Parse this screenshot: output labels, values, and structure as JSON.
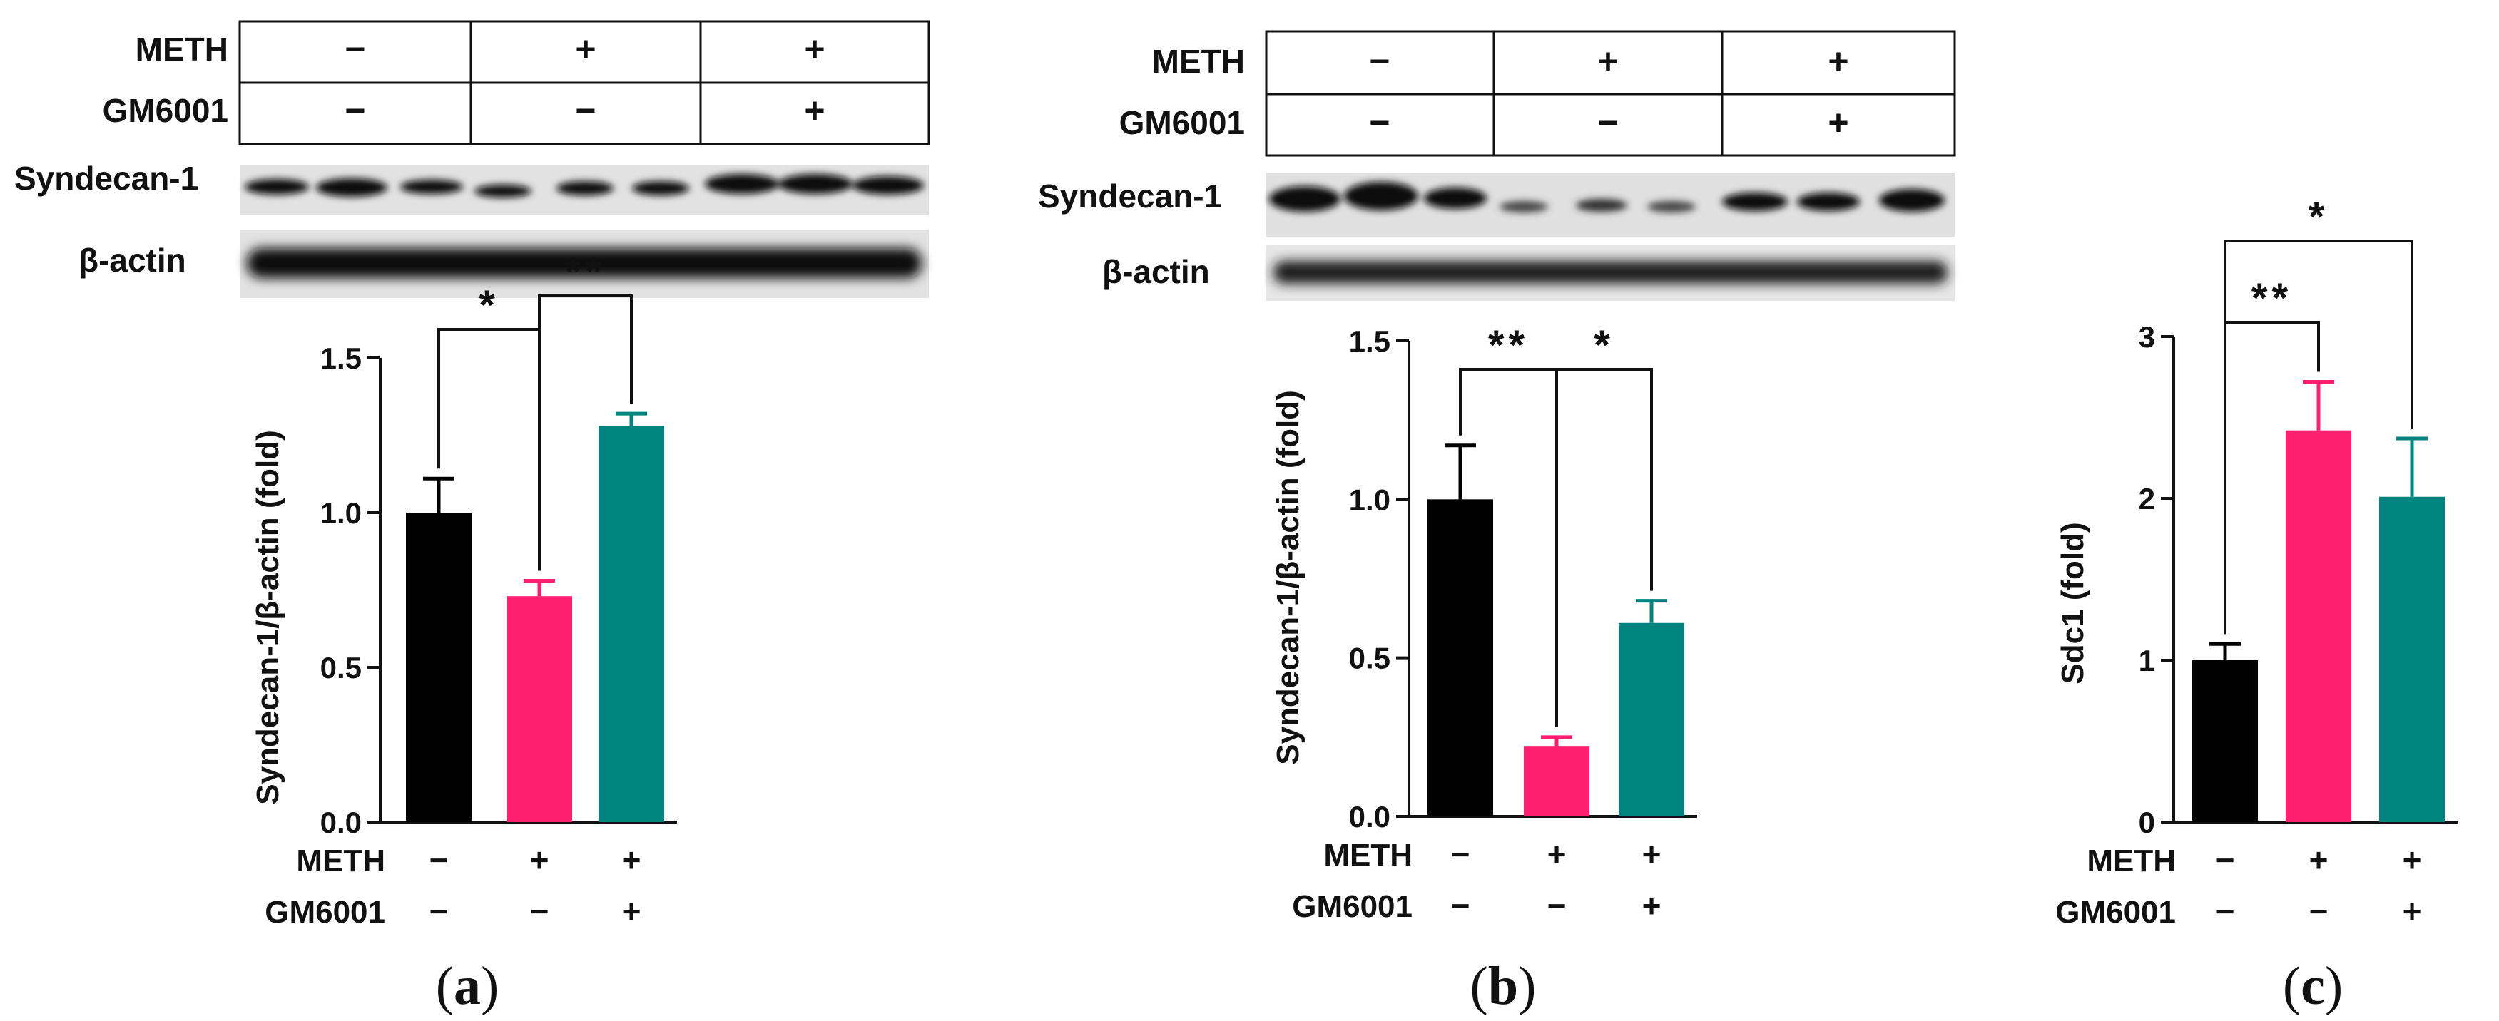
{
  "colors": {
    "control": "#000000",
    "meth": "#ff1f6e",
    "meth_gm": "#00847f",
    "ink": "#111111"
  },
  "blot_labels": {
    "syndecan": "Syndecan-1",
    "actin": "β-actin"
  },
  "condition_labels": {
    "meth": "METH",
    "gm": "GM6001"
  },
  "conditions": {
    "meth": [
      "−",
      "+",
      "+"
    ],
    "gm": [
      "−",
      "−",
      "+"
    ]
  },
  "chart_data": [
    {
      "type": "bar",
      "panel": "(a)",
      "panel_letter": "a",
      "categories": [
        "METH − / GM6001 −",
        "METH + / GM6001 −",
        "METH + / GM6001 +"
      ],
      "values": [
        1.0,
        0.73,
        1.28
      ],
      "errors": [
        0.11,
        0.05,
        0.04
      ],
      "ylabel": "Syndecan-1/β-actin (fold)",
      "ylim": [
        0,
        1.5
      ],
      "yticks": [
        "0.0",
        "0.5",
        "1.0",
        "1.5"
      ],
      "significance": [
        {
          "from": 0,
          "to": 1,
          "label": "*"
        },
        {
          "from": 1,
          "to": 2,
          "label": "**"
        }
      ]
    },
    {
      "type": "bar",
      "panel": "(b)",
      "panel_letter": "b",
      "categories": [
        "METH − / GM6001 −",
        "METH + / GM6001 −",
        "METH + / GM6001 +"
      ],
      "values": [
        1.0,
        0.22,
        0.61
      ],
      "errors": [
        0.17,
        0.03,
        0.07
      ],
      "ylabel": "Syndecan-1/β-actin (fold)",
      "ylim": [
        0,
        1.5
      ],
      "yticks": [
        "0.0",
        "0.5",
        "1.0",
        "1.5"
      ],
      "significance": [
        {
          "from": 0,
          "to": 1,
          "label": "**"
        },
        {
          "from": 1,
          "to": 2,
          "label": "*"
        }
      ]
    },
    {
      "type": "bar",
      "panel": "(c)",
      "panel_letter": "c",
      "categories": [
        "METH − / GM6001 −",
        "METH + / GM6001 −",
        "METH + / GM6001 +"
      ],
      "values": [
        1.0,
        2.42,
        2.01
      ],
      "errors": [
        0.1,
        0.3,
        0.36
      ],
      "ylabel": "Sdc1 (fold)",
      "ylim": [
        0,
        3
      ],
      "yticks": [
        "0",
        "1",
        "2",
        "3"
      ],
      "significance": [
        {
          "from": 0,
          "to": 1,
          "label": "**"
        },
        {
          "from": 0,
          "to": 2,
          "label": "*"
        }
      ]
    }
  ]
}
